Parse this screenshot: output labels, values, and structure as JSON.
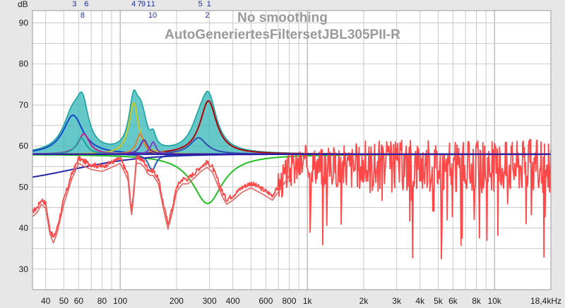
{
  "chart_data": {
    "type": "line",
    "title": "No smoothing",
    "subtitle": "AutoGeneriertesFiltersetJBL305PII-R",
    "ylabel": "dB",
    "xscale": "log",
    "xlim": [
      34,
      20000
    ],
    "ylim": [
      25,
      93
    ],
    "y_ticks": [
      30,
      40,
      50,
      60,
      70,
      80,
      90
    ],
    "x_ticks": [
      {
        "value": 40,
        "label": "40"
      },
      {
        "value": 50,
        "label": "50"
      },
      {
        "value": 60,
        "label": "60"
      },
      {
        "value": 80,
        "label": "80"
      },
      {
        "value": 100,
        "label": "100"
      },
      {
        "value": 200,
        "label": "200"
      },
      {
        "value": 300,
        "label": "300"
      },
      {
        "value": 400,
        "label": "400"
      },
      {
        "value": 600,
        "label": "600"
      },
      {
        "value": 800,
        "label": "800"
      },
      {
        "value": 1000,
        "label": "1k"
      },
      {
        "value": 2000,
        "label": "2k"
      },
      {
        "value": 3000,
        "label": "3k"
      },
      {
        "value": 4000,
        "label": "4k"
      },
      {
        "value": 5000,
        "label": "5k"
      },
      {
        "value": 6000,
        "label": "6k"
      },
      {
        "value": 8000,
        "label": "8k"
      },
      {
        "value": 10000,
        "label": "10k"
      },
      {
        "value": 18400,
        "label": "18,4kHz"
      }
    ],
    "target_level": 58,
    "filter_markers": [
      {
        "label": "3",
        "freq": 57,
        "row": 1
      },
      {
        "label": "6",
        "freq": 66,
        "row": 1
      },
      {
        "label": "8",
        "freq": 63,
        "row": 2
      },
      {
        "label": "4",
        "freq": 118,
        "row": 1
      },
      {
        "label": "7",
        "freq": 127,
        "row": 1
      },
      {
        "label": "9",
        "freq": 133,
        "row": 1
      },
      {
        "label": "1",
        "freq": 142,
        "row": 1
      },
      {
        "label": "1",
        "freq": 150,
        "row": 1
      },
      {
        "label": "10",
        "freq": 149,
        "row": 2
      },
      {
        "label": "5",
        "freq": 268,
        "row": 1
      },
      {
        "label": "1",
        "freq": 298,
        "row": 1
      },
      {
        "label": "2",
        "freq": 292,
        "row": 2
      }
    ],
    "filters": [
      {
        "name": "1",
        "freq": 296,
        "gain": 13.0,
        "q": 4.0,
        "color": "#b40000"
      },
      {
        "name": "2",
        "freq": 293,
        "gain": -12.0,
        "q": 2.2,
        "color": "#20c020"
      },
      {
        "name": "3",
        "freq": 56,
        "gain": 9.5,
        "q": 3.3,
        "color": "#1646c8"
      },
      {
        "name": "4",
        "freq": 118,
        "gain": 12.5,
        "q": 7.0,
        "color": "#c8c820"
      },
      {
        "name": "5",
        "freq": 262,
        "gain": 4.0,
        "q": 4.0,
        "color": "#3050b0"
      },
      {
        "name": "6",
        "freq": 64,
        "gain": 5.0,
        "q": 6.0,
        "color": "#c02090"
      },
      {
        "name": "7",
        "freq": 128,
        "gain": 5.0,
        "q": 9.0,
        "color": "#e08030"
      },
      {
        "name": "8",
        "freq": 62,
        "gain": 4.0,
        "q": 7.0,
        "color": "#20a0a0"
      },
      {
        "name": "9",
        "freq": 134,
        "gain": 3.5,
        "q": 9.0,
        "color": "#6a2aa0"
      },
      {
        "name": "10",
        "freq": 148,
        "gain": -4.0,
        "q": 9.0,
        "color": "#2060c0"
      },
      {
        "name": "11",
        "freq": 150,
        "gain": 3.0,
        "q": 12.0,
        "color": "#8040c0"
      }
    ],
    "measurement_points": [
      [
        34,
        44
      ],
      [
        36,
        45
      ],
      [
        38,
        47
      ],
      [
        40,
        46
      ],
      [
        42,
        40
      ],
      [
        44,
        37.5
      ],
      [
        46,
        40
      ],
      [
        50,
        47
      ],
      [
        55,
        53
      ],
      [
        60,
        57
      ],
      [
        66,
        56
      ],
      [
        70,
        55.5
      ],
      [
        80,
        55
      ],
      [
        90,
        56
      ],
      [
        100,
        57
      ],
      [
        105,
        55
      ],
      [
        110,
        53
      ],
      [
        115,
        44
      ],
      [
        118,
        49
      ],
      [
        122,
        57
      ],
      [
        128,
        57
      ],
      [
        135,
        56
      ],
      [
        140,
        54.5
      ],
      [
        145,
        54
      ],
      [
        150,
        54
      ],
      [
        155,
        53
      ],
      [
        160,
        52
      ],
      [
        170,
        46
      ],
      [
        180,
        41
      ],
      [
        190,
        45
      ],
      [
        200,
        50
      ],
      [
        215,
        52
      ],
      [
        230,
        52
      ],
      [
        250,
        53.5
      ],
      [
        270,
        55
      ],
      [
        290,
        56
      ],
      [
        310,
        55
      ],
      [
        330,
        52
      ],
      [
        350,
        49
      ],
      [
        370,
        47
      ],
      [
        400,
        48
      ],
      [
        450,
        50
      ],
      [
        500,
        51
      ],
      [
        550,
        50
      ],
      [
        600,
        49
      ],
      [
        650,
        48
      ],
      [
        700,
        50
      ],
      [
        750,
        52
      ],
      [
        800,
        54
      ],
      [
        900,
        55
      ],
      [
        1000,
        56
      ],
      [
        1200,
        55
      ],
      [
        1500,
        55
      ],
      [
        2000,
        55
      ],
      [
        2500,
        55
      ],
      [
        3000,
        55
      ],
      [
        4000,
        55.5
      ],
      [
        5000,
        55
      ],
      [
        6000,
        54.5
      ],
      [
        8000,
        55
      ],
      [
        10000,
        55
      ],
      [
        14000,
        55.5
      ],
      [
        18400,
        55
      ]
    ],
    "series": [
      {
        "name": "Measurement",
        "color": "#ff4848"
      },
      {
        "name": "Measurement (second trace)",
        "color": "#e36565"
      },
      {
        "name": "Filter response (fill)",
        "color": "#20a8a8"
      },
      {
        "name": "Target",
        "color": "#2424a8"
      }
    ]
  },
  "colors": {
    "background": "#e7e7e7",
    "plot_background": "#ffffff",
    "grid": "#c9c9c9",
    "grid_decade": "#9c9c9c",
    "filter_marker_text": "#1c2fa0"
  }
}
